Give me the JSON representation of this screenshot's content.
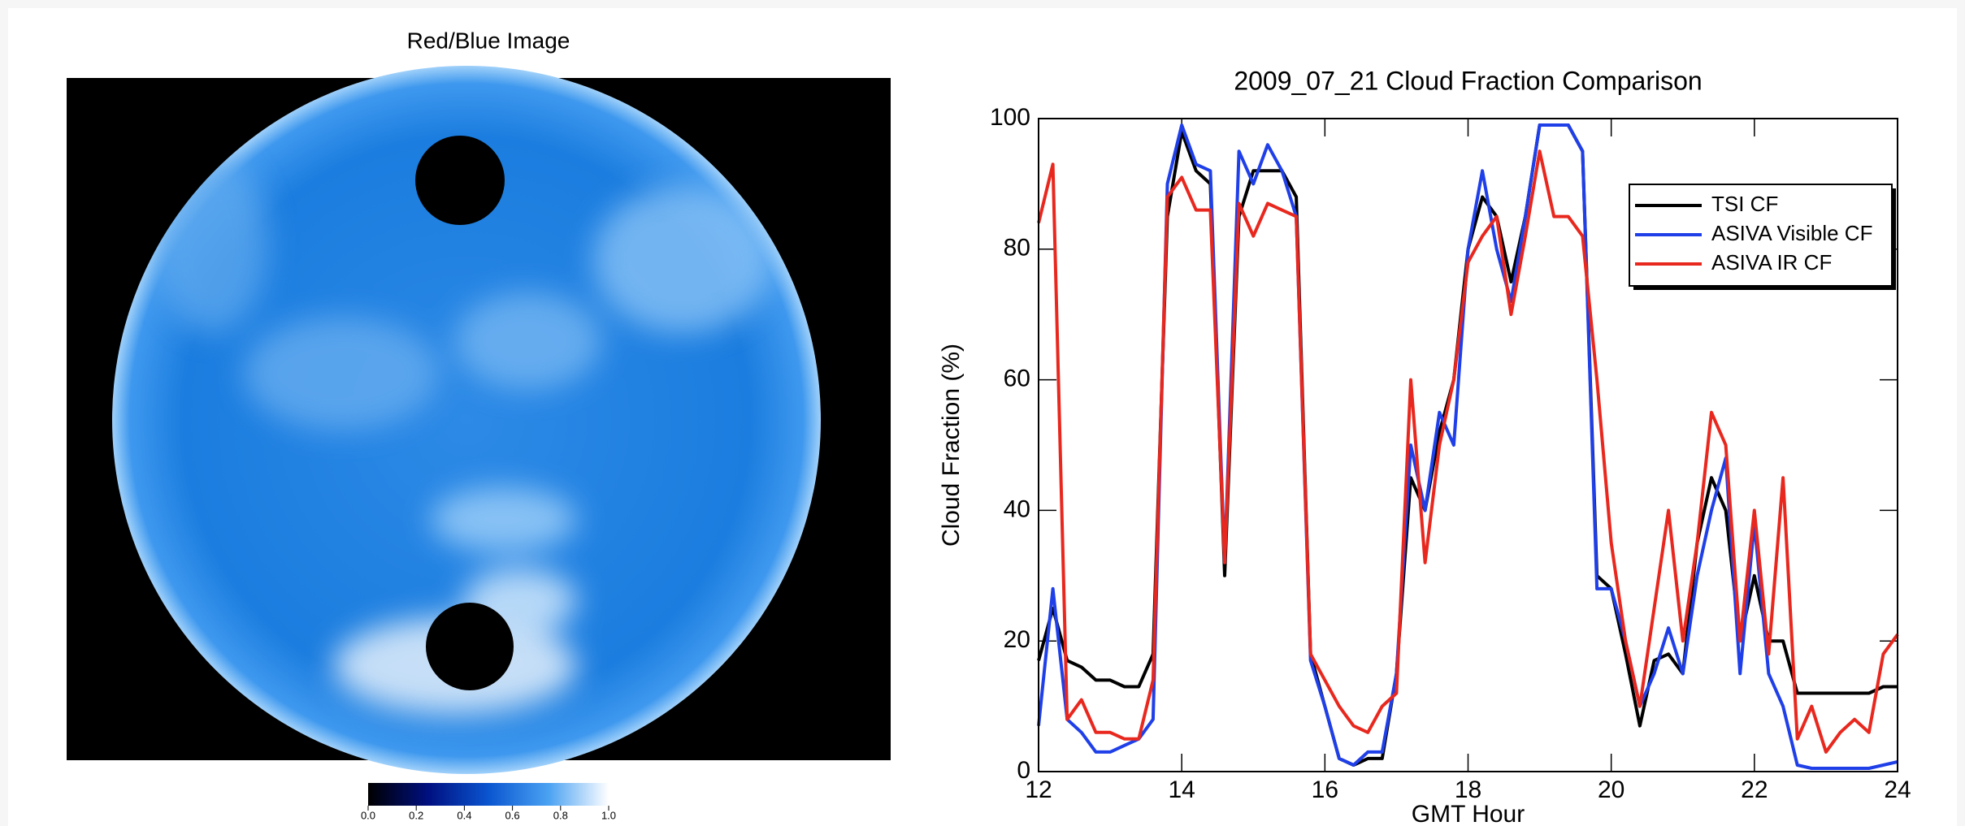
{
  "image_panel": {
    "title": "Red/Blue Image",
    "colorbar_ticks": [
      {
        "value": 0,
        "label": "0.0"
      },
      {
        "value": 0.2,
        "label": "0.2"
      },
      {
        "value": 0.4,
        "label": "0.4"
      },
      {
        "value": 0.6,
        "label": "0.6"
      },
      {
        "value": 0.8,
        "label": "0.8"
      },
      {
        "value": 1,
        "label": "1.0"
      }
    ]
  },
  "chart_data": {
    "type": "line",
    "title": "2009_07_21 Cloud Fraction Comparison",
    "x_label": "GMT Hour",
    "y_label": "Cloud Fraction (%)",
    "x": [
      12,
      12.2,
      12.4,
      12.6,
      12.8,
      13,
      13.2,
      13.4,
      13.6,
      13.8,
      14,
      14.2,
      14.4,
      14.6,
      14.8,
      15,
      15.2,
      15.4,
      15.6,
      15.8,
      16,
      16.2,
      16.4,
      16.6,
      16.8,
      17,
      17.2,
      17.4,
      17.6,
      17.8,
      18,
      18.2,
      18.4,
      18.6,
      18.8,
      19,
      19.2,
      19.4,
      19.6,
      19.8,
      20,
      20.2,
      20.4,
      20.6,
      20.8,
      21,
      21.2,
      21.4,
      21.6,
      21.8,
      22,
      22.2,
      22.4,
      22.6,
      22.8,
      23,
      23.2,
      23.4,
      23.6,
      23.8,
      24
    ],
    "series": [
      {
        "name": "TSI CF",
        "color": "#000000",
        "values": [
          17,
          25,
          17,
          16,
          14,
          14,
          13,
          13,
          18,
          85,
          98,
          92,
          90,
          30,
          85,
          92,
          92,
          92,
          88,
          18,
          10,
          2,
          1,
          2,
          2,
          15,
          45,
          40,
          52,
          60,
          80,
          88,
          85,
          75,
          85,
          99,
          99,
          99,
          95,
          30,
          28,
          18,
          7,
          17,
          18,
          15,
          35,
          45,
          40,
          20,
          30,
          20,
          20,
          12,
          12,
          12,
          12,
          12,
          12,
          13,
          13
        ]
      },
      {
        "name": "ASIVA Visible CF",
        "color": "#1f3fe8",
        "values": [
          7,
          28,
          8,
          6,
          3,
          3,
          4,
          5,
          8,
          90,
          99,
          93,
          92,
          32,
          95,
          90,
          96,
          92,
          85,
          17,
          10,
          2,
          1,
          3,
          3,
          15,
          50,
          40,
          55,
          50,
          80,
          92,
          80,
          72,
          85,
          99,
          99,
          99,
          95,
          28,
          28,
          20,
          10,
          15,
          22,
          15,
          30,
          40,
          48,
          15,
          38,
          15,
          10,
          1,
          0.5,
          0.5,
          0.5,
          0.5,
          0.5,
          1,
          1.5
        ]
      },
      {
        "name": "ASIVA IR CF",
        "color": "#e8281e",
        "values": [
          84,
          93,
          8,
          11,
          6,
          6,
          5,
          5,
          14,
          88,
          91,
          86,
          86,
          32,
          87,
          82,
          87,
          86,
          85,
          18,
          14,
          10,
          7,
          6,
          10,
          12,
          60,
          32,
          50,
          60,
          78,
          82,
          85,
          70,
          82,
          95,
          85,
          85,
          82,
          60,
          35,
          20,
          10,
          25,
          40,
          20,
          35,
          55,
          50,
          20,
          40,
          18,
          45,
          5,
          10,
          3,
          6,
          8,
          6,
          18,
          21
        ]
      }
    ],
    "xlim": [
      12,
      24
    ],
    "ylim": [
      0,
      100
    ],
    "xticks": [
      12,
      14,
      16,
      18,
      20,
      22,
      24
    ],
    "yticks": [
      0,
      20,
      40,
      60,
      80,
      100
    ],
    "legend": "upper right"
  }
}
